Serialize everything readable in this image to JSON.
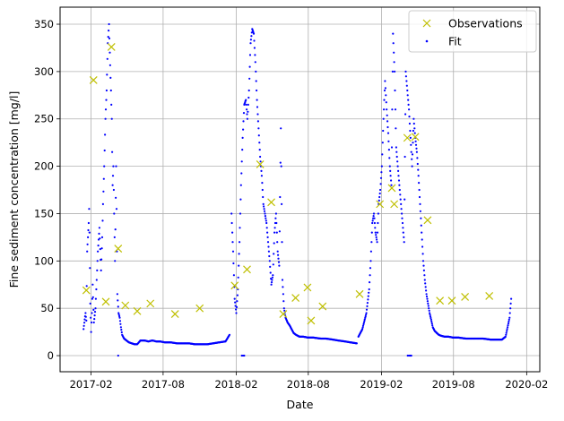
{
  "chart_data": {
    "type": "scatter",
    "xlabel": "Date",
    "ylabel": "Fine sediment concentration [mg/l]",
    "xlim": [
      "2016-11-15",
      "2020-03-05"
    ],
    "ylim": [
      -17,
      368
    ],
    "grid": true,
    "legend_position": "top-right",
    "x_ticks": [
      {
        "date": "2017-02-01",
        "label": "2017-02"
      },
      {
        "date": "2017-08-01",
        "label": "2017-08"
      },
      {
        "date": "2018-02-01",
        "label": "2018-02"
      },
      {
        "date": "2018-08-01",
        "label": "2018-08"
      },
      {
        "date": "2019-02-01",
        "label": "2019-02"
      },
      {
        "date": "2019-08-01",
        "label": "2019-08"
      },
      {
        "date": "2020-02-01",
        "label": "2020-02"
      }
    ],
    "y_ticks": [
      0,
      50,
      100,
      150,
      200,
      250,
      300,
      350
    ],
    "series": [
      {
        "name": "Observations",
        "marker": "x",
        "color": "#bfbf00",
        "x": [
          "2017-01-20",
          "2017-02-07",
          "2017-03-10",
          "2017-03-24",
          "2017-04-10",
          "2017-04-28",
          "2017-05-28",
          "2017-06-30",
          "2017-08-31",
          "2017-11-01",
          "2018-01-28",
          "2018-02-28",
          "2018-04-02",
          "2018-04-30",
          "2018-05-30",
          "2018-06-30",
          "2018-07-30",
          "2018-08-08",
          "2018-09-06",
          "2018-12-08",
          "2019-01-28",
          "2019-02-27",
          "2019-03-05",
          "2019-04-07",
          "2019-04-27",
          "2019-05-28",
          "2019-06-28",
          "2019-07-28",
          "2019-08-30",
          "2019-10-30"
        ],
        "y": [
          69,
          291,
          57,
          326,
          113,
          53,
          47,
          55,
          44,
          50,
          74,
          91,
          202,
          162,
          44,
          61,
          72,
          37,
          52,
          65,
          160,
          177,
          160,
          230,
          231,
          143,
          58,
          58,
          62,
          63
        ]
      },
      {
        "name": "Fit",
        "marker": ".",
        "color": "#0000ff",
        "segments": [
          {
            "x": [
              "2017-01-13",
              "2017-01-18",
              "2017-01-20",
              "2017-01-22",
              "2017-01-26",
              "2017-01-27",
              "2017-01-28",
              "2017-01-30",
              "2017-02-01",
              "2017-02-03",
              "2017-02-05",
              "2017-02-08",
              "2017-02-12",
              "2017-02-15",
              "2017-02-18",
              "2017-02-22",
              "2017-02-26",
              "2017-03-01",
              "2017-03-03",
              "2017-03-06",
              "2017-03-09",
              "2017-03-12",
              "2017-03-15",
              "2017-03-18",
              "2017-03-20",
              "2017-03-23",
              "2017-03-25",
              "2017-03-27",
              "2017-03-29",
              "2017-03-31",
              "2017-04-02",
              "2017-04-05",
              "2017-04-08",
              "2017-04-11",
              "2017-04-14",
              "2017-04-17",
              "2017-04-20",
              "2017-04-25",
              "2017-05-01",
              "2017-05-07",
              "2017-05-14",
              "2017-05-21",
              "2017-05-28",
              "2017-06-05",
              "2017-06-15",
              "2017-06-25",
              "2017-07-05",
              "2017-07-15",
              "2017-07-25",
              "2017-08-05",
              "2017-08-20",
              "2017-09-05",
              "2017-09-20",
              "2017-10-05",
              "2017-10-20",
              "2017-11-05",
              "2017-11-20",
              "2017-12-05",
              "2017-12-20",
              "2018-01-05",
              "2018-01-15"
            ],
            "y": [
              28,
              45,
              37,
              110,
              140,
              155,
              130,
              55,
              25,
              45,
              75,
              35,
              50,
              80,
              110,
              135,
              90,
              125,
              160,
              200,
              250,
              280,
              330,
              350,
              320,
              280,
              250,
              180,
              200,
              150,
              100,
              200,
              65,
              45,
              40,
              30,
              22,
              18,
              16,
              14,
              13,
              12,
              12,
              16,
              16,
              15,
              16,
              15,
              15,
              14,
              14,
              13,
              13,
              13,
              12,
              12,
              12,
              13,
              14,
              15,
              22
            ]
          },
          {
            "x": [
              "2018-01-20",
              "2018-01-24",
              "2018-01-28",
              "2018-02-01",
              "2018-02-05",
              "2018-02-09",
              "2018-02-13",
              "2018-02-17",
              "2018-02-21",
              "2018-02-25",
              "2018-03-01",
              "2018-03-05",
              "2018-03-09",
              "2018-03-13",
              "2018-03-17",
              "2018-03-21",
              "2018-03-25",
              "2018-03-29",
              "2018-04-02",
              "2018-04-06",
              "2018-04-10",
              "2018-04-14",
              "2018-04-18",
              "2018-04-22",
              "2018-04-26",
              "2018-04-30",
              "2018-05-04",
              "2018-05-08",
              "2018-05-12",
              "2018-05-16",
              "2018-05-20",
              "2018-05-24",
              "2018-05-28",
              "2018-06-01",
              "2018-06-05",
              "2018-06-10",
              "2018-06-15",
              "2018-06-20",
              "2018-06-25",
              "2018-07-01",
              "2018-07-10",
              "2018-07-20",
              "2018-08-01",
              "2018-08-15",
              "2018-09-01",
              "2018-09-15",
              "2018-10-01",
              "2018-10-15",
              "2018-11-01",
              "2018-11-15",
              "2018-12-01"
            ],
            "y": [
              150,
              110,
              60,
              45,
              70,
              120,
              180,
              230,
              265,
              270,
              250,
              280,
              330,
              345,
              340,
              310,
              270,
              240,
              210,
              190,
              160,
              150,
              140,
              120,
              100,
              75,
              85,
              130,
              150,
              110,
              95,
              240,
              80,
              50,
              40,
              35,
              32,
              28,
              24,
              22,
              20,
              20,
              19,
              19,
              18,
              18,
              17,
              16,
              15,
              14,
              13
            ]
          },
          {
            "x": [
              "2018-12-05",
              "2018-12-15",
              "2018-12-25",
              "2019-01-01",
              "2019-01-05",
              "2019-01-09",
              "2019-01-13",
              "2019-01-17",
              "2019-01-21",
              "2019-01-25",
              "2019-01-29",
              "2019-02-02",
              "2019-02-06",
              "2019-02-10",
              "2019-02-14",
              "2019-02-18",
              "2019-02-22",
              "2019-02-26",
              "2019-03-02",
              "2019-03-06",
              "2019-03-10",
              "2019-03-14",
              "2019-03-18",
              "2019-03-22",
              "2019-03-26",
              "2019-03-30",
              "2019-04-03",
              "2019-04-07",
              "2019-04-11",
              "2019-04-15",
              "2019-04-19",
              "2019-04-23",
              "2019-04-27",
              "2019-05-01",
              "2019-05-05",
              "2019-05-09",
              "2019-05-13",
              "2019-05-17",
              "2019-05-21",
              "2019-05-25",
              "2019-05-29",
              "2019-06-02",
              "2019-06-06",
              "2019-06-10",
              "2019-06-15",
              "2019-06-20",
              "2019-06-25",
              "2019-07-01",
              "2019-07-10",
              "2019-07-20",
              "2019-08-01",
              "2019-08-15",
              "2019-09-01",
              "2019-09-15",
              "2019-10-01",
              "2019-10-15",
              "2019-11-01",
              "2019-11-15",
              "2019-12-01",
              "2019-12-10",
              "2019-12-15",
              "2019-12-20",
              "2019-12-24"
            ],
            "y": [
              20,
              28,
              45,
              70,
              100,
              140,
              150,
              130,
              120,
              160,
              175,
              200,
              250,
              290,
              260,
              235,
              200,
              180,
              340,
              300,
              220,
              200,
              180,
              160,
              140,
              120,
              300,
              280,
              260,
              230,
              200,
              250,
              230,
              215,
              190,
              160,
              130,
              100,
              80,
              65,
              55,
              45,
              38,
              30,
              26,
              24,
              22,
              21,
              20,
              20,
              19,
              19,
              18,
              18,
              18,
              18,
              17,
              17,
              17,
              20,
              30,
              40,
              60
            ]
          },
          {
            "x": [
              "2017-04-10",
              "2018-02-15",
              "2018-02-18",
              "2018-02-21",
              "2019-04-08",
              "2019-04-11",
              "2019-04-14",
              "2019-04-17"
            ],
            "y": [
              0,
              0,
              0,
              0,
              0,
              0,
              0,
              0
            ]
          }
        ]
      }
    ]
  }
}
